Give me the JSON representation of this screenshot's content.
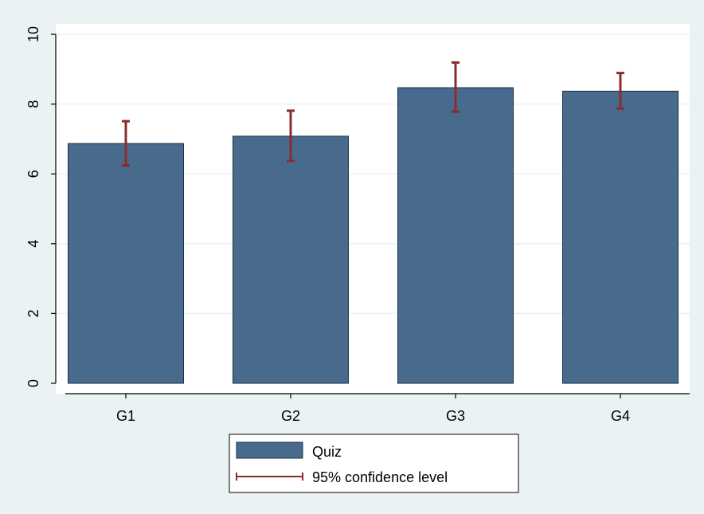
{
  "chart_data": {
    "type": "bar",
    "categories": [
      "G1",
      "G2",
      "G3",
      "G4"
    ],
    "series": [
      {
        "name": "Quiz",
        "values": [
          6.87,
          7.08,
          8.47,
          8.37
        ],
        "ci_low": [
          6.24,
          6.37,
          7.78,
          7.87
        ],
        "ci_high": [
          7.51,
          7.81,
          9.19,
          8.89
        ]
      }
    ],
    "ylim": [
      0,
      10
    ],
    "yticks": [
      0,
      2,
      4,
      6,
      8,
      10
    ],
    "grid": true,
    "legend": {
      "position": "bottom",
      "entries": [
        "Quiz",
        "95% confidence level"
      ]
    },
    "colors": {
      "bar_fill": "#486a8c",
      "bar_stroke": "#1b3145",
      "error_bar": "#8b2c2c",
      "outer_background": "#eaf2f3",
      "plot_background": "#ffffff",
      "grid": "#eaf2f3"
    }
  }
}
